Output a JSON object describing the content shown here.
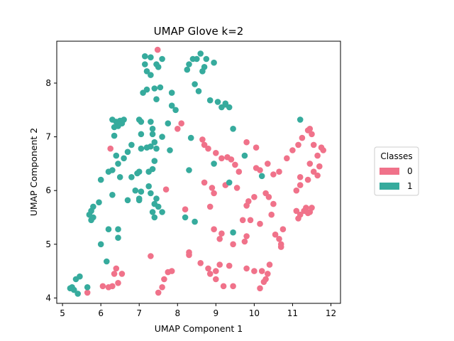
{
  "chart_data": {
    "type": "scatter",
    "title": "UMAP Glove k=2",
    "xlabel": "UMAP Component 1",
    "ylabel": "UMAP Component 2",
    "xlim": [
      4.85,
      12.25
    ],
    "ylim": [
      3.9,
      8.78
    ],
    "xticks": [
      5,
      6,
      7,
      8,
      9,
      10,
      11,
      12
    ],
    "yticks": [
      4,
      5,
      6,
      7,
      8
    ],
    "grid": false,
    "legend": {
      "title": "Classes",
      "placement": "right"
    },
    "series": [
      {
        "name": "0",
        "color": "#f0728a",
        "points": [
          [
            7.48,
            8.62
          ],
          [
            8.1,
            7.25
          ],
          [
            8.0,
            7.15
          ],
          [
            6.25,
            6.78
          ],
          [
            7.7,
            6.02
          ],
          [
            8.65,
            6.95
          ],
          [
            8.7,
            6.85
          ],
          [
            8.8,
            6.78
          ],
          [
            9.0,
            6.7
          ],
          [
            9.15,
            6.6
          ],
          [
            9.3,
            6.62
          ],
          [
            9.4,
            6.58
          ],
          [
            9.5,
            6.48
          ],
          [
            9.6,
            6.35
          ],
          [
            9.8,
            6.9
          ],
          [
            10.05,
            6.8
          ],
          [
            8.7,
            6.15
          ],
          [
            8.9,
            6.05
          ],
          [
            8.95,
            5.95
          ],
          [
            9.25,
            6.1
          ],
          [
            9.55,
            6.05
          ],
          [
            10.05,
            6.42
          ],
          [
            10.15,
            6.38
          ],
          [
            10.35,
            6.5
          ],
          [
            10.5,
            6.3
          ],
          [
            10.65,
            6.35
          ],
          [
            10.0,
            5.88
          ],
          [
            10.3,
            5.95
          ],
          [
            10.38,
            5.88
          ],
          [
            10.5,
            5.75
          ],
          [
            10.45,
            5.55
          ],
          [
            9.8,
            5.72
          ],
          [
            9.85,
            5.8
          ],
          [
            8.2,
            5.65
          ],
          [
            8.85,
            5.7
          ],
          [
            8.95,
            5.28
          ],
          [
            9.15,
            5.2
          ],
          [
            9.1,
            5.1
          ],
          [
            9.45,
            5.0
          ],
          [
            9.7,
            5.45
          ],
          [
            9.9,
            5.45
          ],
          [
            9.8,
            5.15
          ],
          [
            9.75,
            5.05
          ],
          [
            10.15,
            5.38
          ],
          [
            10.55,
            5.18
          ],
          [
            10.65,
            5.1
          ],
          [
            10.75,
            5.28
          ],
          [
            10.7,
            4.95
          ],
          [
            10.7,
            5.0
          ],
          [
            10.85,
            6.6
          ],
          [
            11.0,
            6.75
          ],
          [
            11.15,
            6.85
          ],
          [
            11.25,
            6.98
          ],
          [
            11.4,
            7.12
          ],
          [
            11.45,
            7.15
          ],
          [
            11.5,
            7.05
          ],
          [
            11.55,
            6.85
          ],
          [
            11.75,
            6.8
          ],
          [
            11.8,
            6.75
          ],
          [
            11.65,
            6.65
          ],
          [
            11.7,
            6.45
          ],
          [
            11.55,
            6.35
          ],
          [
            11.65,
            6.28
          ],
          [
            11.45,
            6.5
          ],
          [
            11.2,
            6.25
          ],
          [
            11.4,
            6.2
          ],
          [
            11.1,
            6.0
          ],
          [
            11.2,
            6.1
          ],
          [
            11.1,
            5.62
          ],
          [
            11.15,
            5.48
          ],
          [
            11.2,
            5.55
          ],
          [
            11.3,
            5.62
          ],
          [
            11.35,
            5.68
          ],
          [
            11.45,
            5.6
          ],
          [
            11.5,
            5.68
          ],
          [
            11.4,
            5.58
          ],
          [
            6.05,
            4.22
          ],
          [
            6.2,
            4.2
          ],
          [
            6.3,
            4.22
          ],
          [
            6.35,
            4.45
          ],
          [
            6.45,
            4.28
          ],
          [
            6.55,
            4.45
          ],
          [
            6.4,
            4.55
          ],
          [
            5.65,
            4.1
          ],
          [
            7.3,
            4.78
          ],
          [
            7.5,
            4.1
          ],
          [
            7.6,
            4.2
          ],
          [
            7.65,
            4.35
          ],
          [
            7.75,
            4.48
          ],
          [
            7.85,
            4.5
          ],
          [
            8.3,
            4.8
          ],
          [
            8.3,
            4.85
          ],
          [
            8.6,
            4.65
          ],
          [
            8.8,
            4.55
          ],
          [
            8.85,
            4.45
          ],
          [
            9.0,
            4.5
          ],
          [
            9.1,
            4.62
          ],
          [
            9.0,
            4.35
          ],
          [
            9.2,
            4.22
          ],
          [
            9.35,
            4.6
          ],
          [
            9.45,
            4.22
          ],
          [
            9.8,
            4.55
          ],
          [
            10.0,
            4.5
          ],
          [
            10.15,
            4.18
          ],
          [
            10.25,
            4.3
          ],
          [
            10.3,
            4.35
          ],
          [
            10.35,
            4.45
          ],
          [
            10.4,
            4.62
          ],
          [
            10.2,
            4.5
          ]
        ]
      },
      {
        "name": "1",
        "color": "#36ab9d",
        "points": [
          [
            7.15,
            8.5
          ],
          [
            7.3,
            8.48
          ],
          [
            7.5,
            8.3
          ],
          [
            7.45,
            8.35
          ],
          [
            7.6,
            8.45
          ],
          [
            7.15,
            8.35
          ],
          [
            7.2,
            8.22
          ],
          [
            7.3,
            8.15
          ],
          [
            8.25,
            8.25
          ],
          [
            8.3,
            8.35
          ],
          [
            8.4,
            8.45
          ],
          [
            8.5,
            8.45
          ],
          [
            8.6,
            8.55
          ],
          [
            8.75,
            8.45
          ],
          [
            8.7,
            8.3
          ],
          [
            8.65,
            8.22
          ],
          [
            8.95,
            8.38
          ],
          [
            8.45,
            7.98
          ],
          [
            8.55,
            7.85
          ],
          [
            7.1,
            7.82
          ],
          [
            7.2,
            7.88
          ],
          [
            7.4,
            7.9
          ],
          [
            7.55,
            7.92
          ],
          [
            7.85,
            7.82
          ],
          [
            7.45,
            7.7
          ],
          [
            7.85,
            7.58
          ],
          [
            7.95,
            7.5
          ],
          [
            8.85,
            7.68
          ],
          [
            9.05,
            7.65
          ],
          [
            9.15,
            7.55
          ],
          [
            9.25,
            7.6
          ],
          [
            9.35,
            7.55
          ],
          [
            9.25,
            7.62
          ],
          [
            6.3,
            7.32
          ],
          [
            6.4,
            7.28
          ],
          [
            6.5,
            7.3
          ],
          [
            6.6,
            7.32
          ],
          [
            6.35,
            7.18
          ],
          [
            6.45,
            7.2
          ],
          [
            6.55,
            7.25
          ],
          [
            7.0,
            7.32
          ],
          [
            7.05,
            7.28
          ],
          [
            7.3,
            7.28
          ],
          [
            7.75,
            7.25
          ],
          [
            7.35,
            7.15
          ],
          [
            7.05,
            7.05
          ],
          [
            7.35,
            7.05
          ],
          [
            7.4,
            6.9
          ],
          [
            7.45,
            6.78
          ],
          [
            7.3,
            6.82
          ],
          [
            7.2,
            6.8
          ],
          [
            7.05,
            6.78
          ],
          [
            7.6,
            7.0
          ],
          [
            7.8,
            6.75
          ],
          [
            6.35,
            7.02
          ],
          [
            6.8,
            6.85
          ],
          [
            6.7,
            6.72
          ],
          [
            6.4,
            6.65
          ],
          [
            6.6,
            6.6
          ],
          [
            6.45,
            6.5
          ],
          [
            6.3,
            6.38
          ],
          [
            6.2,
            6.35
          ],
          [
            6.5,
            6.25
          ],
          [
            7.4,
            6.55
          ],
          [
            7.35,
            6.4
          ],
          [
            7.25,
            6.35
          ],
          [
            7.0,
            6.35
          ],
          [
            6.95,
            6.32
          ],
          [
            6.8,
            6.25
          ],
          [
            6.9,
            6.0
          ],
          [
            7.05,
            5.98
          ],
          [
            7.25,
            6.08
          ],
          [
            7.3,
            5.95
          ],
          [
            7.0,
            5.85
          ],
          [
            6.7,
            5.82
          ],
          [
            7.45,
            5.85
          ],
          [
            7.4,
            5.75
          ],
          [
            7.5,
            5.7
          ],
          [
            7.35,
            5.6
          ],
          [
            7.4,
            5.5
          ],
          [
            7.6,
            5.6
          ],
          [
            7.0,
            5.82
          ],
          [
            6.0,
            6.2
          ],
          [
            6.3,
            5.92
          ],
          [
            5.95,
            5.78
          ],
          [
            5.8,
            5.7
          ],
          [
            5.75,
            5.62
          ],
          [
            5.7,
            5.55
          ],
          [
            5.8,
            5.5
          ],
          [
            5.75,
            5.45
          ],
          [
            6.2,
            5.28
          ],
          [
            6.45,
            5.28
          ],
          [
            6.45,
            5.12
          ],
          [
            6.0,
            5.0
          ],
          [
            6.15,
            4.68
          ],
          [
            8.2,
            5.5
          ],
          [
            8.45,
            5.42
          ],
          [
            8.3,
            6.38
          ],
          [
            8.35,
            6.98
          ],
          [
            8.95,
            6.5
          ],
          [
            9.45,
            7.15
          ],
          [
            9.75,
            6.65
          ],
          [
            9.35,
            6.15
          ],
          [
            9.45,
            5.22
          ],
          [
            10.2,
            6.27
          ],
          [
            11.2,
            7.32
          ],
          [
            5.25,
            4.2
          ],
          [
            5.2,
            4.18
          ],
          [
            5.3,
            4.15
          ],
          [
            5.35,
            4.35
          ],
          [
            5.45,
            4.4
          ],
          [
            5.4,
            4.08
          ],
          [
            5.65,
            4.2
          ]
        ]
      }
    ]
  }
}
